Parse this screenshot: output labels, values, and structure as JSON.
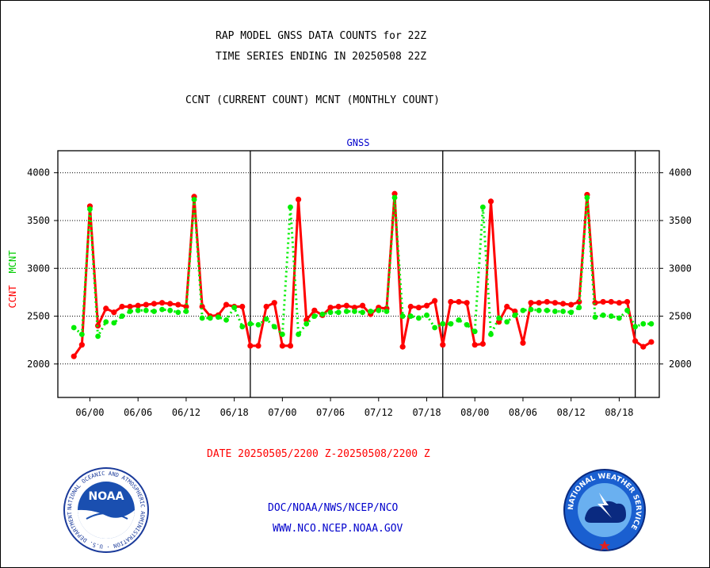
{
  "header": {
    "title_line1": "RAP MODEL GNSS DATA COUNTS for 22Z",
    "title_line2": "TIME SERIES ENDING IN 20250508 22Z",
    "subtitle": "CCNT (CURRENT COUNT) MCNT (MONTHLY COUNT)"
  },
  "footer": {
    "date_range": "DATE 20250505/2200 Z-20250508/2200 Z",
    "org_path": "DOC/NOAA/NWS/NCEP/NCO",
    "website": "WWW.NCO.NCEP.NOAA.GOV"
  },
  "logos": {
    "noaa_text": "NOAA",
    "noaa_ring": "NATIONAL OCEANIC AND ATMOSPHERIC ADMINISTRATION · U.S. DEPARTMENT OF COMMERCE ·",
    "nws_ring": "NATIONAL WEATHER SERVICE"
  },
  "colors": {
    "ccnt": "#ff0000",
    "mcnt": "#00ee00",
    "accent_blue": "#0000cc"
  },
  "chart_data": {
    "type": "line",
    "title": "GNSS",
    "ylabel_parts": [
      "CCNT",
      "MCNT"
    ],
    "ylim": [
      1650,
      4230
    ],
    "xlim": [
      -4,
      71
    ],
    "yticks": [
      2000,
      2500,
      3000,
      3500,
      4000
    ],
    "xticks": [
      {
        "x": 0,
        "label": "06/00"
      },
      {
        "x": 6,
        "label": "06/06"
      },
      {
        "x": 12,
        "label": "06/12"
      },
      {
        "x": 18,
        "label": "06/18"
      },
      {
        "x": 24,
        "label": "07/00"
      },
      {
        "x": 30,
        "label": "07/06"
      },
      {
        "x": 36,
        "label": "07/12"
      },
      {
        "x": 42,
        "label": "07/18"
      },
      {
        "x": 48,
        "label": "08/00"
      },
      {
        "x": 54,
        "label": "08/06"
      },
      {
        "x": 60,
        "label": "08/12"
      },
      {
        "x": 66,
        "label": "08/18"
      }
    ],
    "day_boundaries": [
      20,
      44,
      68
    ],
    "grid": true,
    "series": [
      {
        "name": "CCNT",
        "x": [
          -2,
          -1,
          0,
          1,
          2,
          3,
          4,
          5,
          6,
          7,
          8,
          9,
          10,
          11,
          12,
          13,
          14,
          15,
          16,
          17,
          18,
          19,
          20,
          21,
          22,
          23,
          24,
          25,
          26,
          27,
          28,
          29,
          30,
          31,
          32,
          33,
          34,
          35,
          36,
          37,
          38,
          39,
          40,
          41,
          42,
          43,
          44,
          45,
          46,
          47,
          48,
          49,
          50,
          51,
          52,
          53,
          54,
          55,
          56,
          57,
          58,
          59,
          60,
          61,
          62,
          63,
          64,
          65,
          66,
          67,
          68,
          69,
          70
        ],
        "values": [
          2080,
          2200,
          3650,
          2400,
          2580,
          2540,
          2600,
          2600,
          2610,
          2620,
          2630,
          2640,
          2630,
          2620,
          2600,
          3750,
          2600,
          2500,
          2510,
          2620,
          2600,
          2600,
          2190,
          2190,
          2600,
          2640,
          2190,
          2190,
          3720,
          2460,
          2560,
          2510,
          2590,
          2600,
          2610,
          2590,
          2610,
          2520,
          2590,
          2580,
          3780,
          2180,
          2600,
          2590,
          2610,
          2660,
          2200,
          2650,
          2650,
          2640,
          2200,
          2210,
          3700,
          2440,
          2600,
          2550,
          2220,
          2640,
          2640,
          2650,
          2640,
          2630,
          2620,
          2650,
          3770,
          2640,
          2650,
          2650,
          2640,
          2650,
          2240,
          2180,
          2230
        ]
      },
      {
        "name": "MCNT",
        "x": [
          -2,
          -1,
          0,
          1,
          2,
          3,
          4,
          5,
          6,
          7,
          8,
          9,
          10,
          11,
          12,
          13,
          14,
          15,
          16,
          17,
          18,
          19,
          20,
          21,
          22,
          23,
          24,
          25,
          26,
          27,
          28,
          29,
          30,
          31,
          32,
          33,
          34,
          35,
          36,
          37,
          38,
          39,
          40,
          41,
          42,
          43,
          44,
          45,
          46,
          47,
          48,
          49,
          50,
          51,
          52,
          53,
          54,
          55,
          56,
          57,
          58,
          59,
          60,
          61,
          62,
          63,
          64,
          65,
          66,
          67,
          68,
          69,
          70
        ],
        "values": [
          2380,
          2310,
          3620,
          2290,
          2440,
          2430,
          2500,
          2550,
          2560,
          2560,
          2550,
          2570,
          2560,
          2540,
          2550,
          3720,
          2480,
          2480,
          2490,
          2460,
          2590,
          2390,
          2420,
          2410,
          2470,
          2390,
          2310,
          3640,
          2310,
          2420,
          2500,
          2520,
          2540,
          2540,
          2550,
          2550,
          2540,
          2550,
          2560,
          2550,
          3740,
          2500,
          2500,
          2480,
          2510,
          2380,
          2420,
          2420,
          2460,
          2410,
          2340,
          3640,
          2310,
          2480,
          2440,
          2510,
          2560,
          2570,
          2560,
          2560,
          2550,
          2550,
          2540,
          2590,
          3740,
          2490,
          2510,
          2500,
          2480,
          2560,
          2390,
          2420,
          2420
        ]
      }
    ],
    "right_axis_ticks": [
      2000,
      2500,
      3000,
      3500,
      4000
    ]
  }
}
